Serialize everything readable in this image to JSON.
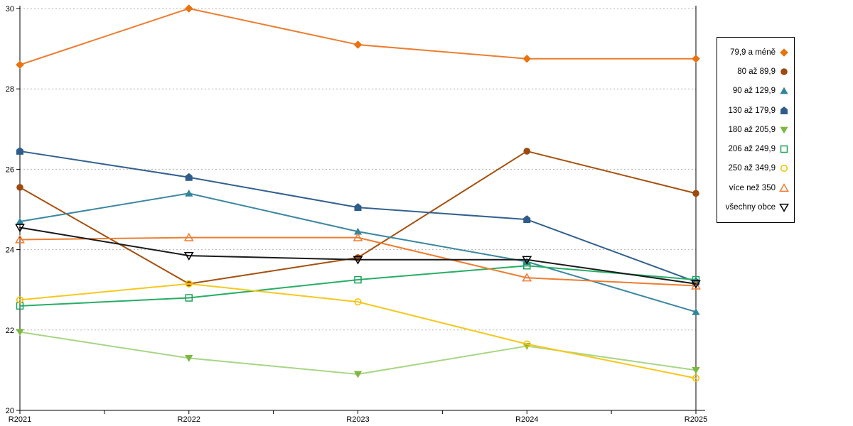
{
  "chart_data": {
    "type": "line",
    "title": "",
    "xlabel": "",
    "ylabel": "",
    "categories": [
      "R2021",
      "R2022",
      "R2023",
      "R2024",
      "R2025"
    ],
    "ylim": [
      20,
      30
    ],
    "y_ticks": [
      20,
      22,
      24,
      26,
      28,
      30
    ],
    "grid": "horizontal-dashed",
    "grid_color": "#b3b3b3",
    "axis_color": "#000000",
    "legend_position": "right-outside-boxed",
    "series": [
      {
        "name": "79,9 a méně",
        "marker": "diamond",
        "open": false,
        "color": "#E8730F",
        "line_color": "#ED7D31",
        "values": [
          28.6,
          30.0,
          29.1,
          28.75,
          28.75
        ]
      },
      {
        "name": "80 až 89,9",
        "marker": "circle",
        "open": false,
        "color": "#9C4A0E",
        "line_color": "#A5500F",
        "values": [
          25.55,
          23.15,
          23.8,
          26.45,
          25.4
        ]
      },
      {
        "name": "90 až 129,9",
        "marker": "triangle-up",
        "open": false,
        "color": "#31859C",
        "line_color": "#3C87A0",
        "values": [
          24.7,
          25.4,
          24.45,
          23.7,
          22.45
        ]
      },
      {
        "name": "130 až 179,9",
        "marker": "pentagon",
        "open": false,
        "color": "#2F5C8A",
        "line_color": "#33618E",
        "values": [
          26.45,
          25.8,
          25.05,
          24.75,
          23.2
        ]
      },
      {
        "name": "180 až 205,9",
        "marker": "triangle-down",
        "open": false,
        "color": "#7DB842",
        "line_color": "#A8D585",
        "values": [
          21.95,
          21.3,
          20.9,
          21.6,
          21.0
        ]
      },
      {
        "name": "206 až 249,9",
        "marker": "square",
        "open": true,
        "color": "#1FA05C",
        "line_color": "#27AD66",
        "values": [
          22.6,
          22.8,
          23.25,
          23.6,
          23.25
        ]
      },
      {
        "name": "250 až 349,9",
        "marker": "circle",
        "open": true,
        "color": "#F0C000",
        "line_color": "#F5C81E",
        "values": [
          22.75,
          23.15,
          22.7,
          21.65,
          20.8
        ]
      },
      {
        "name": "více než 350",
        "marker": "triangle-up",
        "open": true,
        "color": "#ED7D31",
        "line_color": "#ED7D31",
        "values": [
          24.25,
          24.3,
          24.3,
          23.3,
          23.1
        ]
      },
      {
        "name": "všechny obce",
        "marker": "triangle-down",
        "open": true,
        "color": "#000000",
        "line_color": "#1A1A1A",
        "values": [
          24.55,
          23.85,
          23.75,
          23.75,
          23.15
        ]
      }
    ]
  },
  "axes": {
    "x_labels": [
      "R2021",
      "R2022",
      "R2023",
      "R2024",
      "R2025"
    ],
    "y_labels": [
      "20",
      "22",
      "24",
      "26",
      "28",
      "30"
    ]
  }
}
